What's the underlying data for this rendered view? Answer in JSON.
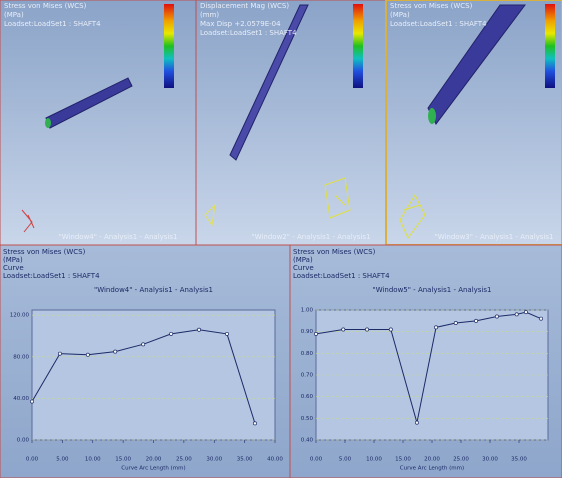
{
  "viewports": [
    {
      "header_lines": [
        "Stress von Mises (WCS)",
        "(MPa)",
        "Loadset:LoadSet1 : SHAFT4"
      ],
      "label": "\"Window4\" - Analysis1 - Analysis1"
    },
    {
      "header_lines": [
        "Displacement Mag (WCS)",
        "(mm)",
        "Max Disp +2.0579E-04",
        "Loadset:LoadSet1 : SHAFT4"
      ],
      "label": "\"Window2\" - Analysis1 - Analysis1"
    },
    {
      "header_lines": [
        "Stress von Mises (WCS)",
        "(MPa)",
        "Loadset:LoadSet1 : SHAFT4"
      ],
      "label": "\"Window3\" - Analysis1 - Analysis1"
    }
  ],
  "chart_data": [
    {
      "type": "line",
      "header_lines": [
        "Stress von Mises (WCS)",
        "(MPa)",
        "Curve",
        "Loadset:LoadSet1 : SHAFT4"
      ],
      "title": "\"Window4\" - Analysis1 - Analysis1",
      "xlabel": "Curve Arc Length (mm)",
      "x": [
        0,
        4.6,
        9.2,
        13.7,
        18.3,
        22.9,
        27.5,
        32.1,
        36.7
      ],
      "values": [
        37,
        83,
        82,
        85,
        92,
        102,
        106,
        102,
        16
      ],
      "color": "#1c2a66",
      "xlim": [
        0,
        40
      ],
      "ylim": [
        0,
        125
      ],
      "xticks": [
        {
          "value": 0,
          "label": "0.00"
        },
        {
          "value": 5,
          "label": "5.00"
        },
        {
          "value": 10,
          "label": "10.00"
        },
        {
          "value": 15,
          "label": "15.00"
        },
        {
          "value": 20,
          "label": "20.00"
        },
        {
          "value": 25,
          "label": "25.00"
        },
        {
          "value": 30,
          "label": "30.00"
        },
        {
          "value": 35,
          "label": "35.00"
        },
        {
          "value": 40,
          "label": "40.00"
        }
      ],
      "yticks": [
        {
          "value": 0,
          "label": "0.00"
        },
        {
          "value": 40,
          "label": "40.00"
        },
        {
          "value": 80,
          "label": "80.00"
        },
        {
          "value": 120,
          "label": "120.00"
        }
      ],
      "grid": true
    },
    {
      "type": "line",
      "header_lines": [
        "Stress von Mises (WCS)",
        "(MPa)",
        "Curve",
        "Loadset:LoadSet1 : SHAFT4"
      ],
      "title": "\"Window5\" - Analysis1 - Analysis1",
      "xlabel": "Curve Arc Length (mm)",
      "x": [
        0,
        4.7,
        8.8,
        12.9,
        17.4,
        20.7,
        24.1,
        27.6,
        31.2,
        34.6,
        36.2,
        38.8
      ],
      "values": [
        0.89,
        0.91,
        0.91,
        0.91,
        0.48,
        0.92,
        0.94,
        0.95,
        0.97,
        0.98,
        0.99,
        0.96
      ],
      "color": "#1c2a66",
      "xlim": [
        0,
        40
      ],
      "ylim": [
        0.4,
        1.0
      ],
      "xticks": [
        {
          "value": 0,
          "label": "0.00"
        },
        {
          "value": 5,
          "label": "5.00"
        },
        {
          "value": 10,
          "label": "10.00"
        },
        {
          "value": 15,
          "label": "15.00"
        },
        {
          "value": 20,
          "label": "20.00"
        },
        {
          "value": 25,
          "label": "25.00"
        },
        {
          "value": 30,
          "label": "30.00"
        },
        {
          "value": 35,
          "label": "35.00"
        }
      ],
      "yticks": [
        {
          "value": 0.4,
          "label": "0.40"
        },
        {
          "value": 0.5,
          "label": "0.50"
        },
        {
          "value": 0.6,
          "label": "0.60"
        },
        {
          "value": 0.7,
          "label": "0.70"
        },
        {
          "value": 0.8,
          "label": "0.80"
        },
        {
          "value": 0.9,
          "label": "0.90"
        },
        {
          "value": 1.0,
          "label": "1.00"
        }
      ],
      "grid": true
    }
  ]
}
